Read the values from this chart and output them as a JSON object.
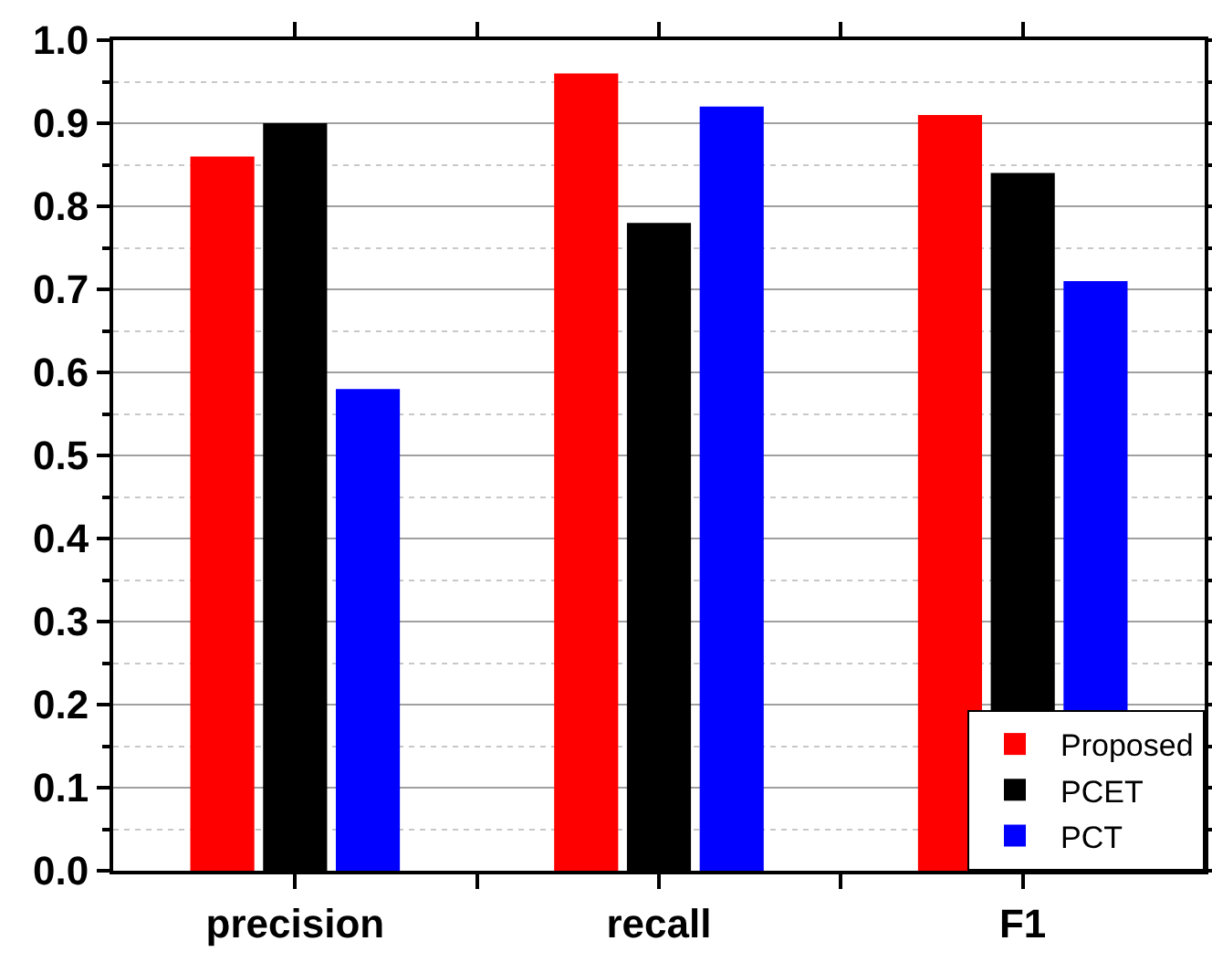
{
  "chart_data": {
    "type": "bar",
    "categories": [
      "precision",
      "recall",
      "F1"
    ],
    "series": [
      {
        "name": "Proposed",
        "color": "#ff0000",
        "values": [
          0.86,
          0.96,
          0.91
        ]
      },
      {
        "name": "PCET",
        "color": "#000000",
        "values": [
          0.9,
          0.78,
          0.84
        ]
      },
      {
        "name": "PCT",
        "color": "#0000ff",
        "values": [
          0.58,
          0.92,
          0.71
        ]
      }
    ],
    "ylim": [
      0,
      1
    ],
    "yticks": [
      {
        "value": 0,
        "label": "0.0"
      },
      0.1,
      0.2,
      0.3,
      0.4,
      0.5,
      0.6,
      0.7,
      0.8,
      0.9,
      {
        "value": 1,
        "label": "1.0"
      }
    ],
    "grid": "y",
    "legend": "bottom right"
  }
}
